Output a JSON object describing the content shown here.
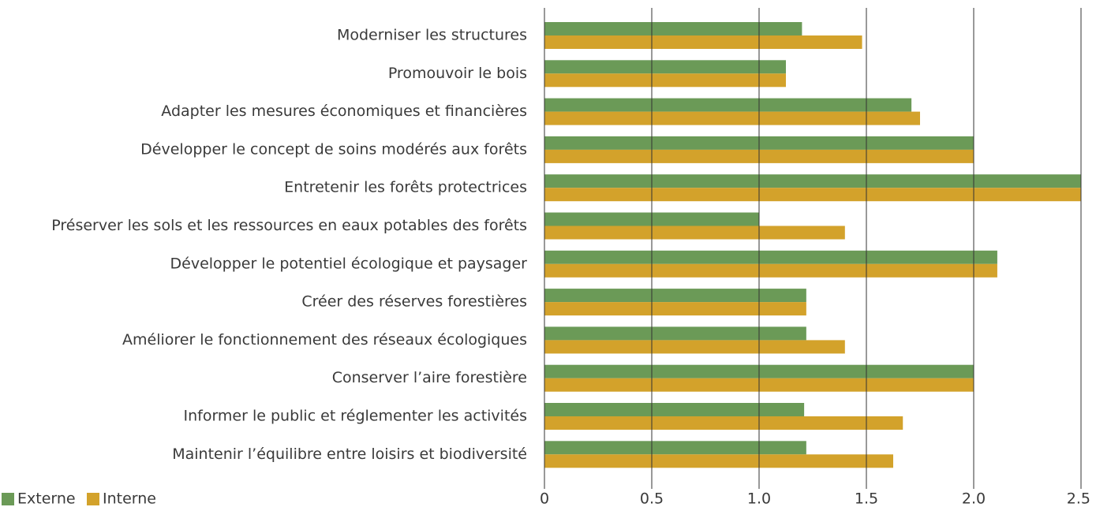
{
  "chart_data": {
    "type": "hbar",
    "categories": [
      "Moderniser les structures",
      "Promouvoir le bois",
      "Adapter les mesures économiques et financières",
      "Développer le concept de soins modérés aux forêts",
      "Entretenir les forêts protectrices",
      "Préserver les sols et les ressources en eaux potables des forêts",
      "Développer le potentiel écologique et paysager",
      "Créer des réserves forestières",
      "Améliorer le fonctionnement des réseaux écologiques",
      "Conserver l’aire forestière",
      "Informer le public et réglementer les activités",
      "Maintenir l’équilibre entre loisirs et biodiversité"
    ],
    "series": [
      {
        "name": "Externe",
        "color": "#6b9a57",
        "values": [
          1.2,
          1.125,
          1.71,
          2.0,
          2.5,
          1.0,
          2.11,
          1.22,
          1.22,
          2.0,
          1.21,
          1.22
        ]
      },
      {
        "name": "Interne",
        "color": "#d3a22b",
        "values": [
          1.48,
          1.125,
          1.75,
          2.0,
          2.5,
          1.4,
          2.11,
          1.22,
          1.4,
          2.0,
          1.67,
          1.625
        ]
      }
    ],
    "xlim": [
      0,
      2.5
    ],
    "xticks": [
      0,
      0.5,
      {
        "value": 1,
        "label": "1.0"
      },
      1.5,
      {
        "value": 2,
        "label": "2.0"
      },
      2.5
    ],
    "grid": true,
    "legend": "bottom-left"
  }
}
